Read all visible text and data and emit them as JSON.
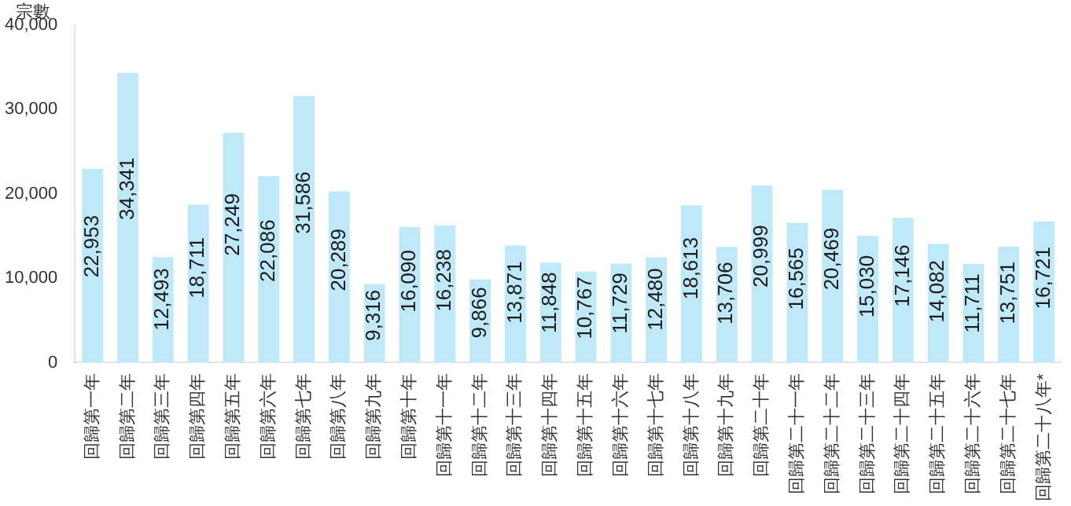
{
  "chart_data": {
    "type": "bar",
    "ylabel": "宗數",
    "categories": [
      "回歸第一年",
      "回歸第二年",
      "回歸第三年",
      "回歸第四年",
      "回歸第五年",
      "回歸第六年",
      "回歸第七年",
      "回歸第八年",
      "回歸第九年",
      "回歸第十年",
      "回歸第十一年",
      "回歸第十二年",
      "回歸第十三年",
      "回歸第十四年",
      "回歸第十五年",
      "回歸第十六年",
      "回歸第十七年",
      "回歸第十八年",
      "回歸第十九年",
      "回歸第二十年",
      "回歸第二十一年",
      "回歸第二十二年",
      "回歸第二十三年",
      "回歸第二十四年",
      "回歸第二十五年",
      "回歸第二十六年",
      "回歸第二十七年",
      "回歸第二十八年*"
    ],
    "values": [
      22953,
      34341,
      12493,
      18711,
      27249,
      22086,
      31586,
      20289,
      9316,
      16090,
      16238,
      9866,
      13871,
      11848,
      10767,
      11729,
      12480,
      18613,
      13706,
      20999,
      16565,
      20469,
      15030,
      17146,
      14082,
      11711,
      13751,
      16721
    ],
    "value_labels": [
      "22,953",
      "34,341",
      "12,493",
      "18,711",
      "27,249",
      "22,086",
      "31,586",
      "20,289",
      "9,316",
      "16,090",
      "16,238",
      "9,866",
      "13,871",
      "11,848",
      "10,767",
      "11,729",
      "12,480",
      "18,613",
      "13,706",
      "20,999",
      "16,565",
      "20,469",
      "15,030",
      "17,146",
      "14,082",
      "11,711",
      "13,751",
      "16,721"
    ],
    "color": "#bfe9f8",
    "ylim": [
      0,
      40000
    ],
    "yticks": [
      {
        "value": 0,
        "label": "0"
      },
      {
        "value": 10000,
        "label": "10,000"
      },
      {
        "value": 20000,
        "label": "20,000"
      },
      {
        "value": 30000,
        "label": "30,000"
      },
      {
        "value": 40000,
        "label": "40,000"
      }
    ],
    "grid": false,
    "legend": false
  }
}
